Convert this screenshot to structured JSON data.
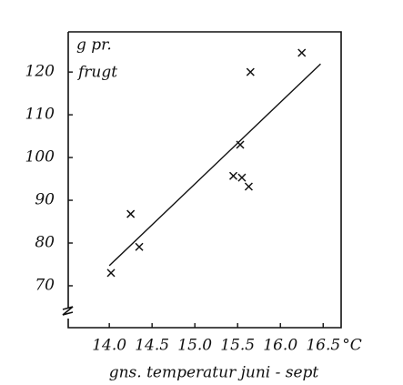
{
  "chart_data": {
    "type": "scatter",
    "y_label_lines": [
      "g pr.",
      "frugt"
    ],
    "x_label": "gns. temperatur juni - sept",
    "x_unit": "°C",
    "x": [
      14.02,
      14.25,
      14.35,
      15.45,
      15.55,
      15.63,
      15.53,
      15.65,
      16.25
    ],
    "values": [
      73.0,
      86.8,
      79.1,
      95.7,
      95.3,
      93.2,
      103,
      120,
      124.5
    ],
    "trend_line": {
      "x": [
        14.0,
        16.47
      ],
      "values": [
        74.7,
        121.9
      ]
    },
    "color": "#111111",
    "xlim": [
      13.52,
      16.71
    ],
    "ylim": [
      60.2,
      129.4
    ],
    "xticks": [
      {
        "value": 14,
        "label": "14.0"
      },
      14.5,
      {
        "value": 15,
        "label": "15.0"
      },
      15.5,
      {
        "value": 16,
        "label": "16.0"
      },
      16.5
    ],
    "yticks": [
      70,
      80,
      90,
      100,
      110,
      120
    ],
    "grid": false
  }
}
